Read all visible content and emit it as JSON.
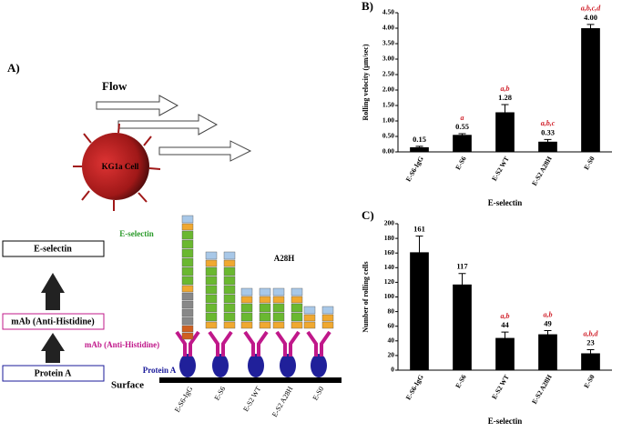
{
  "chart_data": [
    {
      "type": "bar",
      "panel": "B)",
      "ylabel": "Rolling velocity (μm/sec)",
      "xlabel": "E-selectin",
      "categories": [
        "E-S6-IgG",
        "E-S6",
        "E-S2 WT",
        "E-S2 A28H",
        "E-S0"
      ],
      "values": [
        0.15,
        0.55,
        1.28,
        0.33,
        4.0
      ],
      "value_labels": [
        "0.15",
        "0.55",
        "1.28",
        "0.33",
        "4.00"
      ],
      "errors": [
        0.03,
        0.04,
        0.25,
        0.07,
        0.12
      ],
      "annotations": [
        null,
        "a",
        "a,b",
        "a,b,c",
        "a,b,c,d"
      ],
      "color": "#000000",
      "annotation_color": "#d0202a",
      "ylim": [
        0,
        4.5
      ],
      "yticks": [
        {
          "value": 0,
          "label": "0.00"
        },
        {
          "value": 0.5,
          "label": "0.50"
        },
        {
          "value": 1,
          "label": "1.00"
        },
        {
          "value": 1.5,
          "label": "1.50"
        },
        {
          "value": 2,
          "label": "2.00"
        },
        {
          "value": 2.5,
          "label": "2.50"
        },
        {
          "value": 3,
          "label": "3.00"
        },
        {
          "value": 3.5,
          "label": "3.50"
        },
        {
          "value": 4,
          "label": "4.00"
        },
        {
          "value": 4.5,
          "label": "4.50"
        }
      ]
    },
    {
      "type": "bar",
      "panel": "C)",
      "ylabel": "Number of rolling cells",
      "xlabel": "E-selectin",
      "categories": [
        "E-S6-IgG",
        "E-S6",
        "E-S2 WT",
        "E-S2 A28H",
        "E-S0"
      ],
      "values": [
        161,
        117,
        44,
        49,
        23
      ],
      "errors": [
        22,
        15,
        8,
        5,
        5
      ],
      "annotations": [
        null,
        null,
        "a,b",
        "a,b",
        "a,b,d"
      ],
      "color": "#000000",
      "annotation_color": "#d0202a",
      "ylim": [
        0,
        200
      ],
      "yticks": [
        0,
        20,
        40,
        60,
        80,
        100,
        120,
        140,
        160,
        180,
        200
      ]
    }
  ],
  "diagram": {
    "panel": "A)",
    "flow": "Flow",
    "cell": "KG1a Cell",
    "eselectin": "E-selectin",
    "mutation": "A28H",
    "mab": "mAb (Anti-Histidine)",
    "proteina": "Protein A",
    "surface": "Surface",
    "constructs": [
      "E-S6-IgG",
      "E-S6",
      "E-S2 WT",
      "E-S2 A28H",
      "E-S0"
    ],
    "legend": [
      "E-selectin",
      "mAb (Anti-Histidine)",
      "Protein A"
    ]
  }
}
